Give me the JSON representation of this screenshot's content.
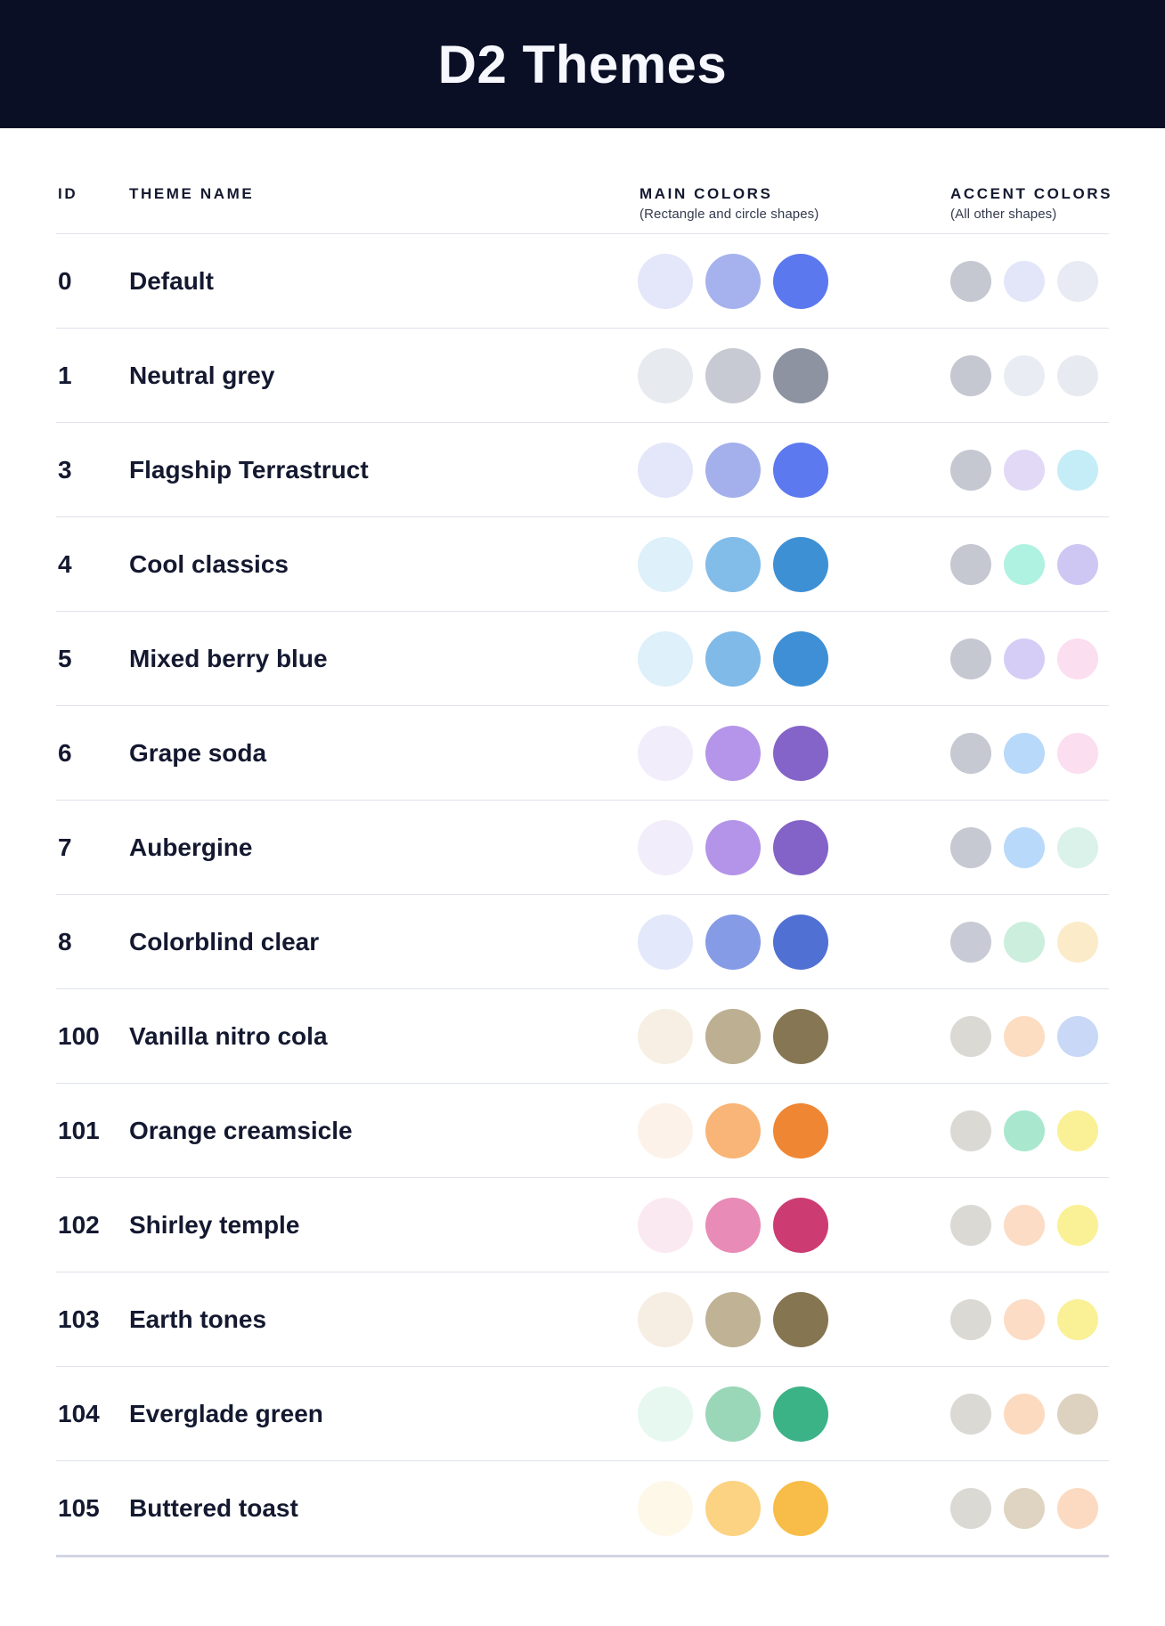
{
  "banner": {
    "title": "D2 Themes",
    "background": "#0A0F25",
    "text_color": "#F7F8FE"
  },
  "table": {
    "columns": {
      "id_label": "ID",
      "name_label": "THEME NAME",
      "main_label": "MAIN COLORS",
      "main_sub": "(Rectangle and circle shapes)",
      "accent_label": "ACCENT COLORS",
      "accent_sub": "(All other shapes)"
    },
    "rows": [
      {
        "id": "0",
        "name": "Default",
        "main": [
          "#E4E7F9",
          "#A5B2EE",
          "#5B78EF"
        ],
        "accent": [
          "#C5C7D1",
          "#E3E6F8",
          "#E9EBF4"
        ]
      },
      {
        "id": "1",
        "name": "Neutral grey",
        "main": [
          "#E7EAEF",
          "#C8CAD3",
          "#8E93A2"
        ],
        "accent": [
          "#C5C7D1",
          "#E9ECF3",
          "#E7EAF0"
        ]
      },
      {
        "id": "3",
        "name": "Flagship Terrastruct",
        "main": [
          "#E4E7F9",
          "#A3B0EC",
          "#5D79EF"
        ],
        "accent": [
          "#C5C7D1",
          "#E2D9F6",
          "#C5EDF8"
        ]
      },
      {
        "id": "4",
        "name": "Cool classics",
        "main": [
          "#DEF0FA",
          "#82BCE9",
          "#3E90D5"
        ],
        "accent": [
          "#C5C7D1",
          "#AFF2E2",
          "#CEC7F3"
        ]
      },
      {
        "id": "5",
        "name": "Mixed berry blue",
        "main": [
          "#DEF0FA",
          "#7FBAE8",
          "#3E8FD5"
        ],
        "accent": [
          "#C5C7D1",
          "#D6CDF6",
          "#FBDEEF"
        ]
      },
      {
        "id": "6",
        "name": "Grape soda",
        "main": [
          "#F2EDFB",
          "#B595E9",
          "#8464C8"
        ],
        "accent": [
          "#C6C8D2",
          "#B8D9FA",
          "#FBDEEF"
        ]
      },
      {
        "id": "7",
        "name": "Aubergine",
        "main": [
          "#F1EDFA",
          "#B494E9",
          "#8363C7"
        ],
        "accent": [
          "#C6C8D2",
          "#B8D9FA",
          "#DAF2EA"
        ]
      },
      {
        "id": "8",
        "name": "Colorblind clear",
        "main": [
          "#E3E8FA",
          "#859BE6",
          "#5070D4"
        ],
        "accent": [
          "#C8CAD5",
          "#CBEEDD",
          "#FBEBC8"
        ]
      },
      {
        "id": "100",
        "name": "Vanilla nitro cola",
        "main": [
          "#F7EFE3",
          "#BDAF91",
          "#867653"
        ],
        "accent": [
          "#DAD9D4",
          "#FCDDC2",
          "#C9D8F6"
        ]
      },
      {
        "id": "101",
        "name": "Orange creamsicle",
        "main": [
          "#FDF2E9",
          "#F8B577",
          "#EF8633"
        ],
        "accent": [
          "#DAD9D4",
          "#A9E8CE",
          "#FAF096"
        ]
      },
      {
        "id": "102",
        "name": "Shirley temple",
        "main": [
          "#FBE9F1",
          "#E88BB6",
          "#CC3C72"
        ],
        "accent": [
          "#DAD9D4",
          "#FCDCC5",
          "#FAF096"
        ]
      },
      {
        "id": "103",
        "name": "Earth tones",
        "main": [
          "#F6EEE2",
          "#BFB295",
          "#857550"
        ],
        "accent": [
          "#DAD9D4",
          "#FCDCC5",
          "#FAF096"
        ]
      },
      {
        "id": "104",
        "name": "Everglade green",
        "main": [
          "#E6F8F0",
          "#9AD6B8",
          "#3CB287"
        ],
        "accent": [
          "#DAD9D4",
          "#FCDAC0",
          "#DDD2BF"
        ]
      },
      {
        "id": "105",
        "name": "Buttered toast",
        "main": [
          "#FDF8E8",
          "#FBD382",
          "#F7BD48"
        ],
        "accent": [
          "#DAD9D4",
          "#DED4C1",
          "#FCDAC1"
        ]
      }
    ]
  },
  "divider_color": "#DFE1ED",
  "bottom_divider_color": "#D2D5E3"
}
